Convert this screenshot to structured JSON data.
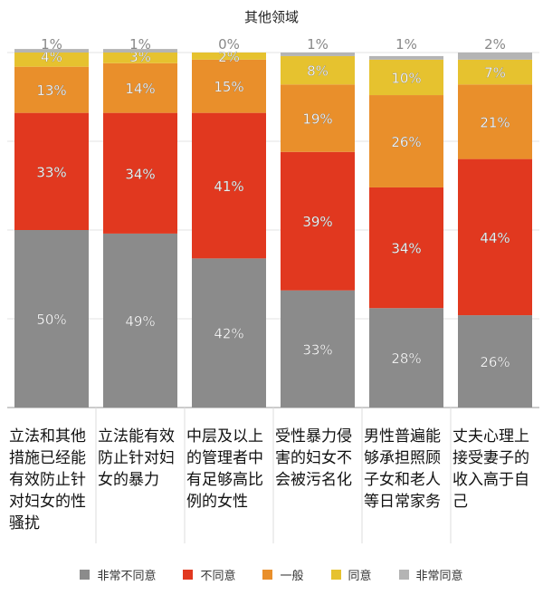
{
  "chart_data": {
    "type": "bar",
    "stacked": true,
    "title": "其他领域",
    "categories": [
      "立法和其他措施已经能有效防止针对妇女的性骚扰",
      "立法能有效防止针对妇女的暴力",
      "中层及以上的管理者中有足够高比例的女性",
      "受性暴力侵害的妇女不会被污名化",
      "男性普遍能够承担照顾子女和老人等日常家务",
      "丈夫心理上接受妻子的收入高于自己"
    ],
    "series": [
      {
        "name": "非常不同意",
        "color": "#8b8b8b",
        "values": [
          50,
          49,
          42,
          33,
          28,
          26
        ]
      },
      {
        "name": "不同意",
        "color": "#e1381f",
        "values": [
          33,
          34,
          41,
          39,
          34,
          44
        ]
      },
      {
        "name": "一般",
        "color": "#e98f2b",
        "values": [
          13,
          14,
          15,
          19,
          26,
          21
        ]
      },
      {
        "name": "同意",
        "color": "#e6c22f",
        "values": [
          4,
          3,
          2,
          8,
          10,
          7
        ]
      },
      {
        "name": "非常同意",
        "color": "#b4b4b4",
        "values": [
          1,
          1,
          0,
          1,
          1,
          2
        ]
      }
    ],
    "ylim": [
      0,
      100
    ],
    "grid": true,
    "legend_position": "bottom"
  }
}
